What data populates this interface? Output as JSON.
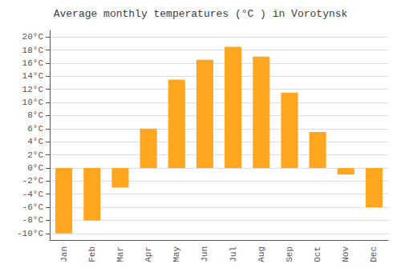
{
  "chart_data": {
    "type": "bar",
    "title": "Average monthly temperatures (°C ) in Vorotynsk",
    "categories": [
      "Jan",
      "Feb",
      "Mar",
      "Apr",
      "May",
      "Jun",
      "Jul",
      "Aug",
      "Sep",
      "Oct",
      "Nov",
      "Dec"
    ],
    "values": [
      -10,
      -8,
      -3,
      6,
      13.5,
      16.5,
      18.5,
      17,
      11.5,
      5.5,
      -1,
      -6
    ],
    "color": "#FFA620",
    "ylim": [
      -11,
      21
    ],
    "yticks": [
      {
        "value": -10,
        "label": "-10°C"
      },
      {
        "value": -8,
        "label": "-8°C"
      },
      {
        "value": -6,
        "label": "-6°C"
      },
      {
        "value": -4,
        "label": "-4°C"
      },
      {
        "value": -2,
        "label": "-2°C"
      },
      {
        "value": 0,
        "label": "0°C"
      },
      {
        "value": 2,
        "label": "2°C"
      },
      {
        "value": 4,
        "label": "4°C"
      },
      {
        "value": 6,
        "label": "6°C"
      },
      {
        "value": 8,
        "label": "8°C"
      },
      {
        "value": 10,
        "label": "10°C"
      },
      {
        "value": 12,
        "label": "12°C"
      },
      {
        "value": 14,
        "label": "14°C"
      },
      {
        "value": 16,
        "label": "16°C"
      },
      {
        "value": 18,
        "label": "18°C"
      },
      {
        "value": 20,
        "label": "20°C"
      }
    ],
    "grid": true
  }
}
